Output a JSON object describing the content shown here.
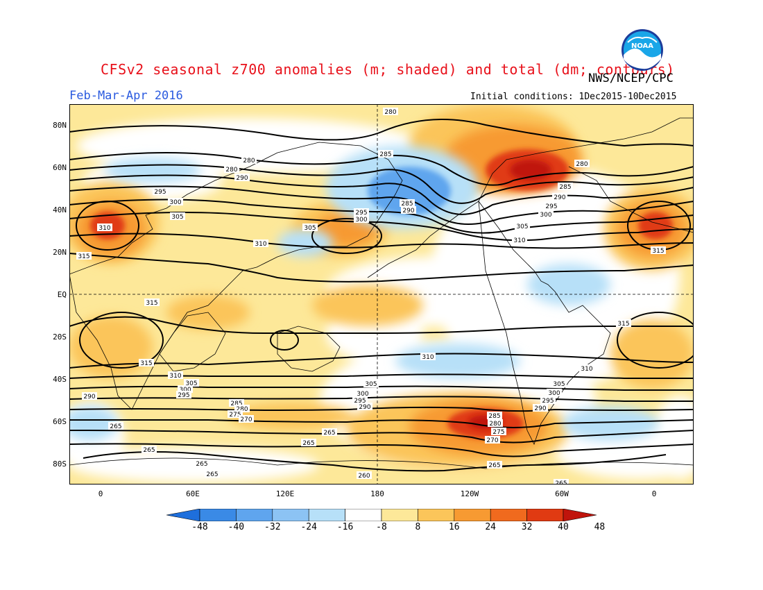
{
  "header": {
    "title": "CFSv2 seasonal z700 anomalies (m; shaded) and total (dm; contours)",
    "agency": "NWS/NCEP/CPC",
    "logo_text": "NOAA",
    "period": "Feb-Mar-Apr 2016",
    "initial_conditions": "Initial conditions: 1Dec2015-10Dec2015"
  },
  "axes": {
    "lat_labels": [
      "80N",
      "60N",
      "40N",
      "20N",
      "EQ",
      "20S",
      "40S",
      "60S",
      "80S"
    ],
    "lon_labels": [
      "0",
      "60E",
      "120E",
      "180",
      "120W",
      "60W",
      "0"
    ]
  },
  "contour_labels": [
    "280",
    "285",
    "290",
    "295",
    "300",
    "305",
    "310",
    "315",
    "270",
    "275",
    "265",
    "260",
    "280",
    "285",
    "290",
    "295",
    "300",
    "305",
    "310",
    "315",
    "310",
    "305",
    "300",
    "295",
    "290",
    "285",
    "280",
    "275",
    "270",
    "265",
    "310",
    "305",
    "300",
    "295",
    "290",
    "285",
    "275",
    "270",
    "265",
    "270",
    "265",
    "315",
    "310",
    "315",
    "280",
    "285",
    "290",
    "300",
    "305",
    "310",
    "315"
  ],
  "colorbar": {
    "labels": [
      "-48",
      "-40",
      "-32",
      "-24",
      "-16",
      "-8",
      "8",
      "16",
      "24",
      "32",
      "40",
      "48"
    ],
    "colors": [
      "#1e6fdc",
      "#3a8ae6",
      "#5fa5ee",
      "#8cc3f4",
      "#b7e0f8",
      "#ffffff",
      "#fde899",
      "#fbc55a",
      "#f79a32",
      "#f06a1e",
      "#e03a12",
      "#c0140c"
    ]
  }
}
